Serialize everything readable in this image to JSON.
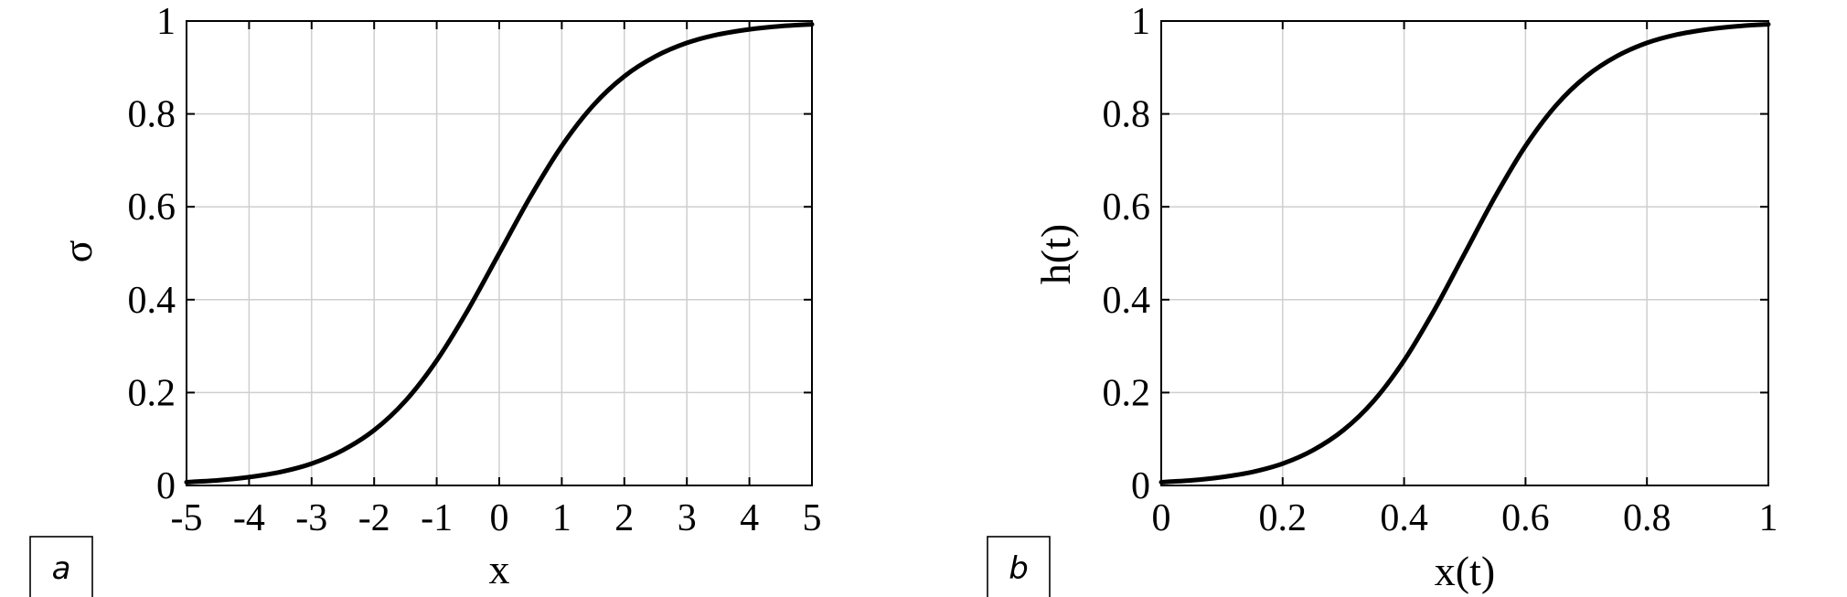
{
  "chart_data": [
    {
      "type": "line",
      "panel_label": "a",
      "title": "",
      "xlabel": "x",
      "ylabel": "σ",
      "xlim": [
        -5,
        5
      ],
      "ylim": [
        0,
        1
      ],
      "grid": true,
      "x_ticks": [
        -5,
        -4,
        -3,
        -2,
        -1,
        0,
        1,
        2,
        3,
        4,
        5
      ],
      "y_ticks": [
        0,
        0.2,
        0.4,
        0.6,
        0.8,
        1
      ],
      "x_tick_labels": [
        "-5",
        "-4",
        "-3",
        "-2",
        "-1",
        "0",
        "1",
        "2",
        "3",
        "4",
        "5"
      ],
      "y_tick_labels": [
        "0",
        "0.2",
        "0.4",
        "0.6",
        "0.8",
        "1"
      ],
      "series": [
        {
          "x": [
            -5,
            -4.5,
            -4,
            -3.5,
            -3,
            -2.5,
            -2,
            -1.5,
            -1,
            -0.5,
            0,
            0.5,
            1,
            1.5,
            2,
            2.5,
            3,
            3.5,
            4,
            4.5,
            5
          ],
          "values": [
            0.007,
            0.011,
            0.018,
            0.029,
            0.047,
            0.076,
            0.119,
            0.182,
            0.269,
            0.378,
            0.5,
            0.622,
            0.731,
            0.818,
            0.881,
            0.924,
            0.953,
            0.971,
            0.982,
            0.989,
            0.993
          ]
        }
      ]
    },
    {
      "type": "line",
      "panel_label": "b",
      "title": "",
      "xlabel": "x(t)",
      "ylabel": "h(t)",
      "xlim": [
        0,
        1
      ],
      "ylim": [
        0,
        1
      ],
      "grid": true,
      "x_ticks": [
        0,
        0.2,
        0.4,
        0.6,
        0.8,
        1
      ],
      "y_ticks": [
        0,
        0.2,
        0.4,
        0.6,
        0.8,
        1
      ],
      "x_tick_labels": [
        "0",
        "0.2",
        "0.4",
        "0.6",
        "0.8",
        "1"
      ],
      "y_tick_labels": [
        "0",
        "0.2",
        "0.4",
        "0.6",
        "0.8",
        "1"
      ],
      "series": [
        {
          "x": [
            0,
            0.05,
            0.1,
            0.15,
            0.2,
            0.25,
            0.3,
            0.35,
            0.4,
            0.45,
            0.5,
            0.55,
            0.6,
            0.65,
            0.7,
            0.75,
            0.8,
            0.85,
            0.9,
            0.95,
            1
          ],
          "values": [
            0.007,
            0.011,
            0.018,
            0.029,
            0.047,
            0.076,
            0.119,
            0.182,
            0.269,
            0.378,
            0.5,
            0.622,
            0.731,
            0.818,
            0.881,
            0.924,
            0.953,
            0.971,
            0.982,
            0.989,
            0.993
          ]
        }
      ]
    }
  ]
}
